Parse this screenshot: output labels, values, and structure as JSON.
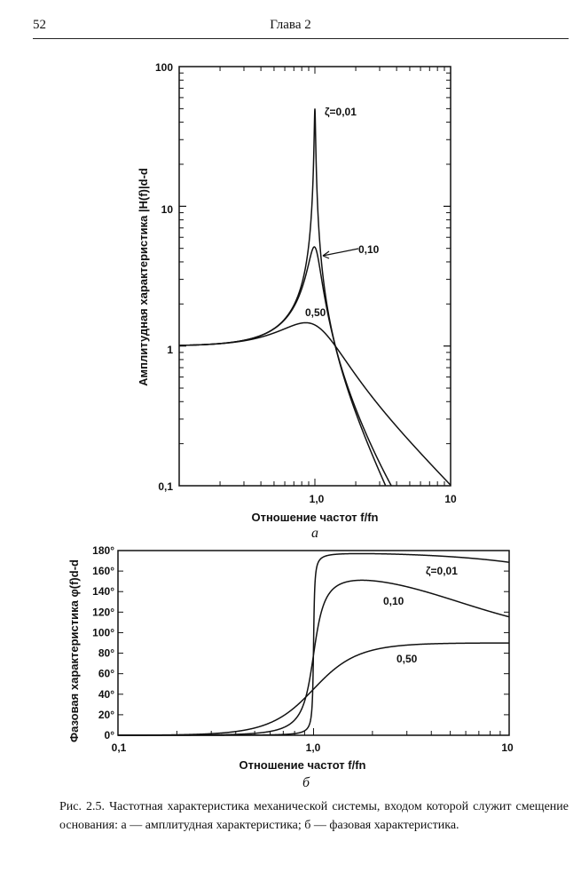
{
  "header": {
    "page_number": "52",
    "chapter": "Глава 2"
  },
  "chart_data": [
    {
      "type": "line",
      "id": "a",
      "scale": "log-log",
      "ylabel": "Амплитудная характеристика |H(f)|d-d",
      "xlabel": "Отношение частот f/fn",
      "sublabel": "а",
      "xlim": [
        0.1,
        10
      ],
      "ylim": [
        0.1,
        100
      ],
      "x_tick_labels": [
        "1,0",
        "10"
      ],
      "y_tick_labels": [
        "100",
        "10",
        "1",
        "0,1"
      ],
      "curve_labels": [
        "ζ=0,01",
        "0,10",
        "0,50"
      ],
      "series": [
        {
          "name": "ζ=0,01",
          "zeta": 0.01
        },
        {
          "name": "ζ=0,10",
          "zeta": 0.1
        },
        {
          "name": "ζ=0,50",
          "zeta": 0.5
        }
      ]
    },
    {
      "type": "line",
      "id": "b",
      "scale": "semilog-x",
      "ylabel": "Фазовая характеристика φ(f)d-d",
      "xlabel": "Отношение частот f/fn",
      "sublabel": "б",
      "xlim": [
        0.1,
        10
      ],
      "ylim": [
        0,
        180
      ],
      "x_tick_labels": [
        "0,1",
        "1,0",
        "10"
      ],
      "y_tick_labels": [
        "180°",
        "160°",
        "140°",
        "120°",
        "100°",
        "80°",
        "60°",
        "40°",
        "20°",
        "0°"
      ],
      "curve_labels": [
        "ζ=0,01",
        "0,10",
        "0,50"
      ],
      "series": [
        {
          "name": "ζ=0,01",
          "zeta": 0.01
        },
        {
          "name": "ζ=0,10",
          "zeta": 0.1
        },
        {
          "name": "ζ=0,50",
          "zeta": 0.5
        }
      ]
    }
  ],
  "caption": "Рис. 2.5. Частотная характеристика механической системы, входом которой служит смещение основания: а — амплитудная характеристика; б — фазовая характеристика."
}
